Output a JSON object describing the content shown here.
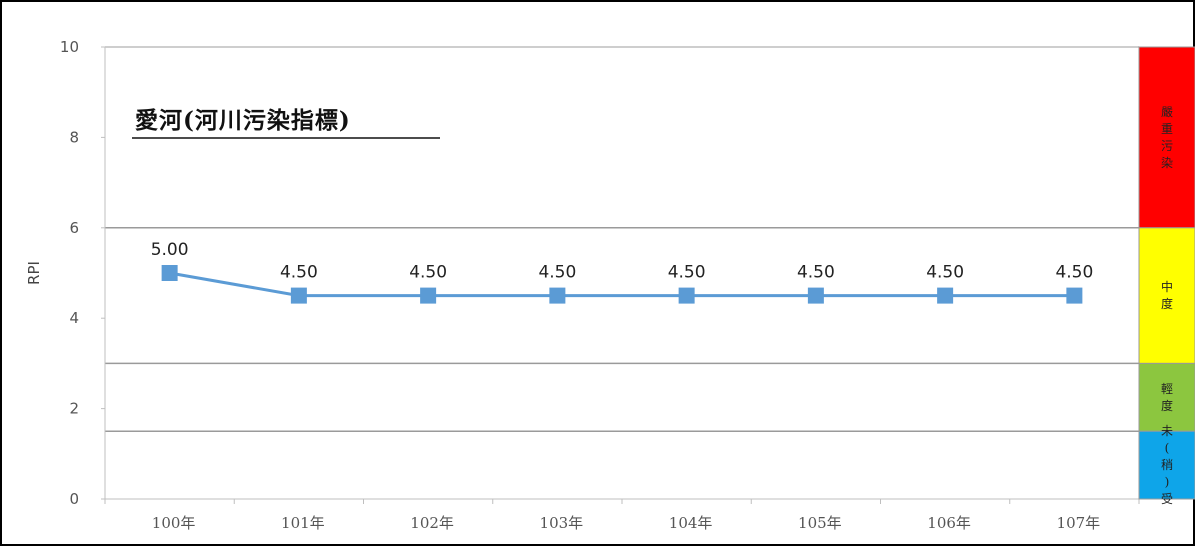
{
  "chart_data": {
    "type": "line",
    "title": "愛河(河川污染指標)",
    "ylabel": "RPI",
    "xlabel": "",
    "ylim": [
      0,
      10
    ],
    "yticks": [
      0,
      2,
      4,
      6,
      8,
      10
    ],
    "categories": [
      "100年",
      "101年",
      "102年",
      "103年",
      "104年",
      "105年",
      "106年",
      "107年"
    ],
    "series": [
      {
        "values": [
          5.0,
          4.5,
          4.5,
          4.5,
          4.5,
          4.5,
          4.5,
          4.5
        ],
        "labels": [
          "5.00",
          "4.50",
          "4.50",
          "4.50",
          "4.50",
          "4.50",
          "4.50",
          "4.50"
        ],
        "color": "#5b9bd5"
      }
    ],
    "grid": false,
    "threshold_lines": [
      1.5,
      3.0,
      6.0,
      10.0
    ],
    "legend": "none",
    "bands": [
      {
        "from": 6.0,
        "to": 10.0,
        "label": "嚴重污染",
        "color": "#ff0000"
      },
      {
        "from": 3.0,
        "to": 6.0,
        "label": "中度",
        "color": "#ffff00"
      },
      {
        "from": 1.5,
        "to": 3.0,
        "label": "輕度",
        "color": "#8cc63f"
      },
      {
        "from": 0.0,
        "to": 1.5,
        "label": "未(稍)受",
        "color": "#0ea5e9"
      }
    ]
  }
}
